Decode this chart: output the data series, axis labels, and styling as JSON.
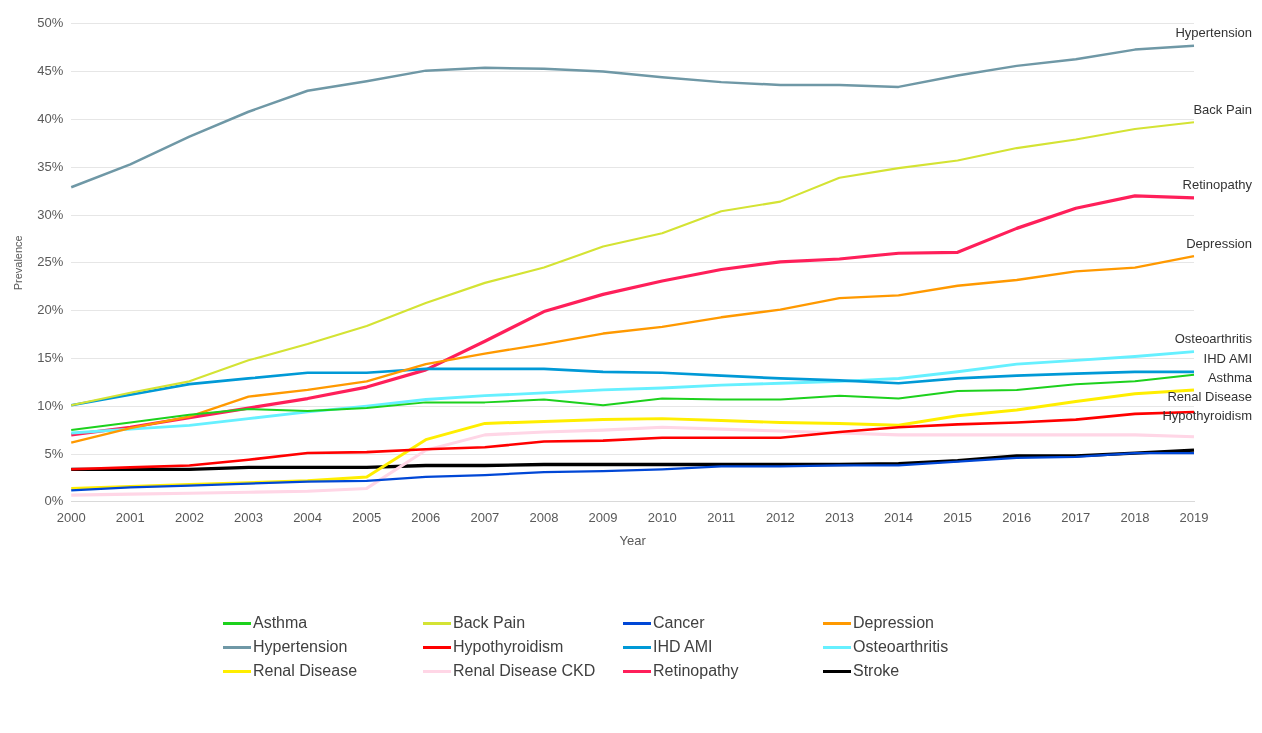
{
  "chart_data": {
    "type": "line",
    "xlabel": "Year",
    "ylabel": "Prevalence",
    "categories": [
      "2000",
      "2001",
      "2002",
      "2003",
      "2004",
      "2005",
      "2006",
      "2007",
      "2008",
      "2009",
      "2010",
      "2011",
      "2012",
      "2013",
      "2014",
      "2015",
      "2016",
      "2017",
      "2018",
      "2019"
    ],
    "ylim": [
      0,
      50
    ],
    "yticks": [
      {
        "value": 0,
        "label": "0%"
      },
      {
        "value": 5,
        "label": "5%"
      },
      {
        "value": 10,
        "label": "10%"
      },
      {
        "value": 15,
        "label": "15%"
      },
      {
        "value": 20,
        "label": "20%"
      },
      {
        "value": 25,
        "label": "25%"
      },
      {
        "value": 30,
        "label": "30%"
      },
      {
        "value": 35,
        "label": "35%"
      },
      {
        "value": 40,
        "label": "40%"
      },
      {
        "value": 45,
        "label": "45%"
      },
      {
        "value": 50,
        "label": "50%"
      }
    ],
    "grid": "y",
    "legend": "bottom",
    "marker": "none",
    "line_style": "solid",
    "series": [
      {
        "name": "Asthma",
        "color": "#1dd11d",
        "values": [
          7.5,
          8.3,
          9.1,
          9.7,
          9.5,
          9.8,
          10.4,
          10.4,
          10.7,
          10.1,
          10.8,
          10.7,
          10.7,
          11.1,
          10.8,
          11.6,
          11.7,
          12.3,
          12.6,
          13.3
        ]
      },
      {
        "name": "Back Pain",
        "color": "#d4e334",
        "values": [
          10.1,
          11.4,
          12.6,
          14.8,
          16.5,
          18.4,
          20.8,
          22.9,
          24.5,
          26.7,
          28.1,
          30.4,
          31.4,
          33.9,
          34.9,
          35.7,
          37.0,
          37.9,
          39.0,
          39.7
        ]
      },
      {
        "name": "Cancer",
        "color": "#0047d6",
        "values": [
          1.2,
          1.5,
          1.7,
          1.9,
          2.1,
          2.2,
          2.6,
          2.8,
          3.1,
          3.2,
          3.4,
          3.7,
          3.7,
          3.8,
          3.8,
          4.2,
          4.6,
          4.7,
          5.1,
          5.1
        ]
      },
      {
        "name": "Depression",
        "color": "#ff9900",
        "values": [
          6.2,
          7.7,
          8.9,
          11.0,
          11.7,
          12.6,
          14.4,
          15.5,
          16.5,
          17.6,
          18.3,
          19.3,
          20.1,
          21.3,
          21.6,
          22.6,
          23.2,
          24.1,
          24.5,
          25.7
        ]
      },
      {
        "name": "Hypertension",
        "color": "#6f98a6",
        "values": [
          32.9,
          35.3,
          38.2,
          40.8,
          43.0,
          44.0,
          45.1,
          45.4,
          45.3,
          45.0,
          44.4,
          43.9,
          43.6,
          43.6,
          43.4,
          44.6,
          45.6,
          46.3,
          47.3,
          47.7
        ]
      },
      {
        "name": "Hypothyroidism",
        "color": "#ff0000",
        "values": [
          3.4,
          3.6,
          3.8,
          4.4,
          5.1,
          5.2,
          5.5,
          5.7,
          6.3,
          6.4,
          6.7,
          6.7,
          6.7,
          7.3,
          7.8,
          8.1,
          8.3,
          8.6,
          9.2,
          9.4
        ]
      },
      {
        "name": "IHD AMI",
        "color": "#0099d6",
        "values": [
          10.1,
          11.2,
          12.3,
          12.9,
          13.5,
          13.5,
          13.9,
          13.9,
          13.9,
          13.6,
          13.5,
          13.2,
          12.9,
          12.7,
          12.4,
          12.9,
          13.2,
          13.4,
          13.6,
          13.6
        ]
      },
      {
        "name": "Osteoarthritis",
        "color": "#66f0ff",
        "values": [
          7.2,
          7.6,
          8.0,
          8.7,
          9.4,
          10.0,
          10.7,
          11.1,
          11.4,
          11.7,
          11.9,
          12.2,
          12.4,
          12.6,
          12.9,
          13.6,
          14.4,
          14.8,
          15.2,
          15.7
        ]
      },
      {
        "name": "Renal Disease",
        "color": "#ffee00",
        "values": [
          1.4,
          1.6,
          1.8,
          2.0,
          2.2,
          2.6,
          6.5,
          8.2,
          8.4,
          8.6,
          8.7,
          8.5,
          8.3,
          8.2,
          8.0,
          9.0,
          9.6,
          10.5,
          11.3,
          11.7
        ]
      },
      {
        "name": "Renal Disease CKD",
        "color": "#ffd6e6",
        "values": [
          0.7,
          0.8,
          0.9,
          1.0,
          1.1,
          1.4,
          5.4,
          7.0,
          7.3,
          7.5,
          7.8,
          7.6,
          7.4,
          7.2,
          7.0,
          7.0,
          7.0,
          7.0,
          7.0,
          6.8
        ]
      },
      {
        "name": "Retinopathy",
        "color": "#ff1f5a",
        "values": [
          7.0,
          7.8,
          8.8,
          9.8,
          10.8,
          12.0,
          13.8,
          16.8,
          19.9,
          21.7,
          23.1,
          24.3,
          25.1,
          25.4,
          26.0,
          26.1,
          28.6,
          30.7,
          32.0,
          31.8
        ]
      },
      {
        "name": "Stroke",
        "color": "#000000",
        "values": [
          3.4,
          3.4,
          3.4,
          3.6,
          3.6,
          3.6,
          3.8,
          3.8,
          3.9,
          3.9,
          3.9,
          3.9,
          3.9,
          3.9,
          4.0,
          4.3,
          4.8,
          4.8,
          5.1,
          5.4
        ]
      }
    ],
    "annotations": [
      {
        "text": "Hypertension",
        "x": "2019",
        "y": 47.7
      },
      {
        "text": "Back Pain",
        "x": "2019",
        "y": 39.7
      },
      {
        "text": "Retinopathy",
        "x": "2019",
        "y": 31.8
      },
      {
        "text": "Depression",
        "x": "2019",
        "y": 25.7
      },
      {
        "text": "Osteoarthritis",
        "x": "2019",
        "y": 15.7
      },
      {
        "text": "IHD AMI",
        "x": "2019",
        "y": 13.6
      },
      {
        "text": "Asthma",
        "x": "2019",
        "y": 13.3
      },
      {
        "text": "Renal Disease",
        "x": "2019",
        "y": 11.7
      },
      {
        "text": "Hypothyroidism",
        "x": "2019",
        "y": 9.4
      }
    ]
  }
}
